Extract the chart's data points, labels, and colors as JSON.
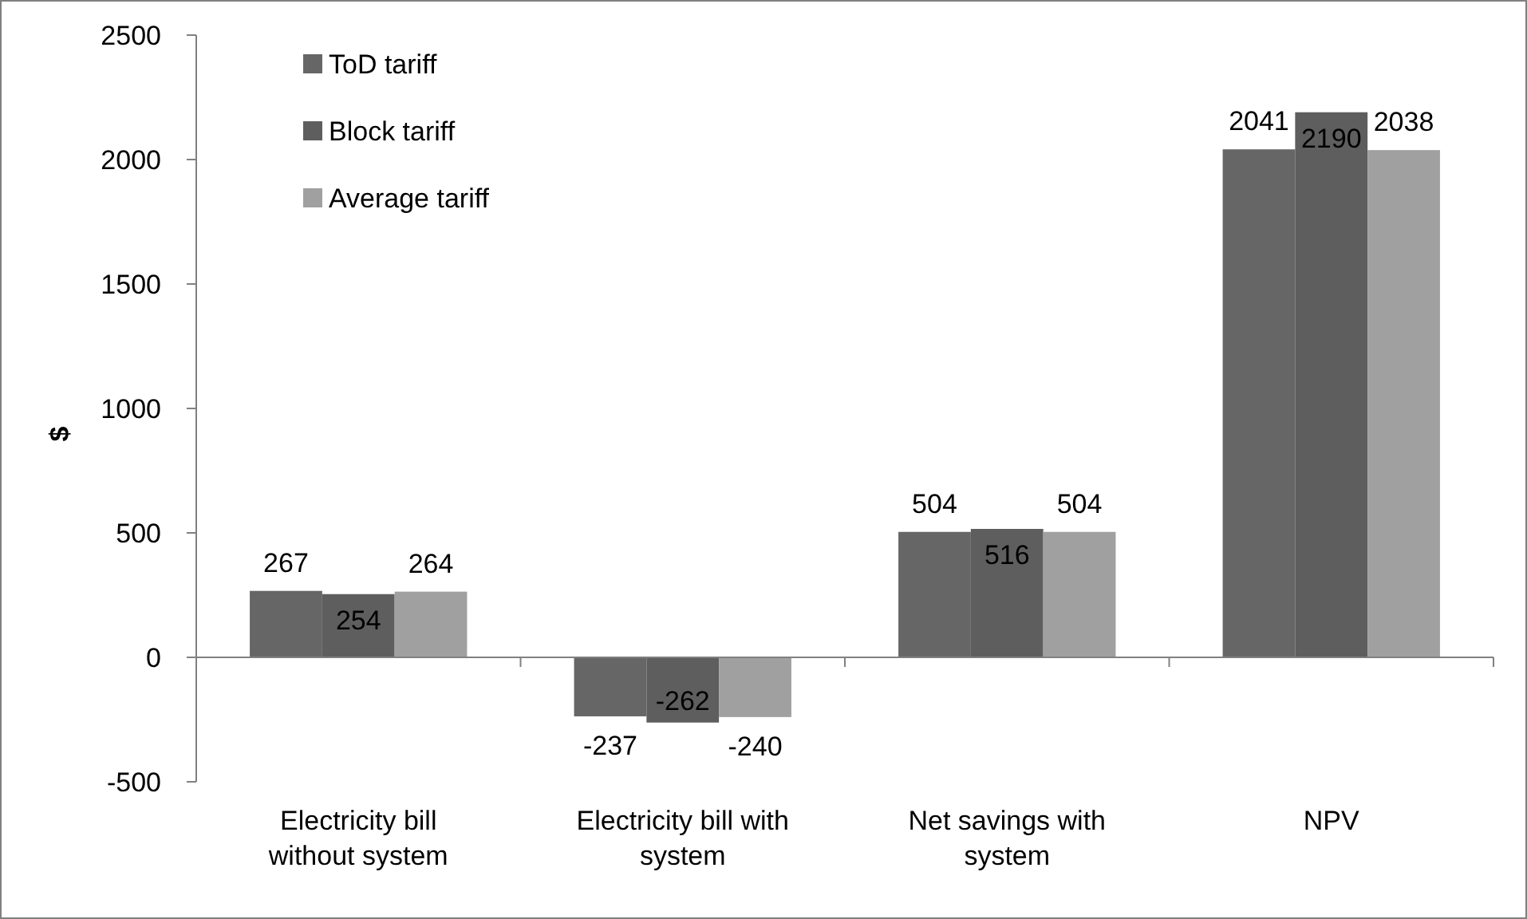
{
  "chart_data": {
    "type": "bar",
    "ylabel": "$",
    "categories": [
      "Electricity bill without system",
      "Electricity bill with system",
      "Net savings with system",
      "NPV"
    ],
    "series": [
      {
        "name": "ToD tariff",
        "color": "#666666",
        "values": [
          267,
          -237,
          504,
          2041
        ]
      },
      {
        "name": "Block tariff",
        "color": "#5e5e5e",
        "values": [
          254,
          -262,
          516,
          2190
        ]
      },
      {
        "name": "Average tariff",
        "color": "#a0a0a0",
        "values": [
          264,
          -240,
          504,
          2038
        ]
      }
    ],
    "ylim": [
      -500,
      2500
    ],
    "yticks": [
      -500,
      0,
      500,
      1000,
      1500,
      2000,
      2500
    ],
    "data_labels": true,
    "legend": "top left"
  }
}
